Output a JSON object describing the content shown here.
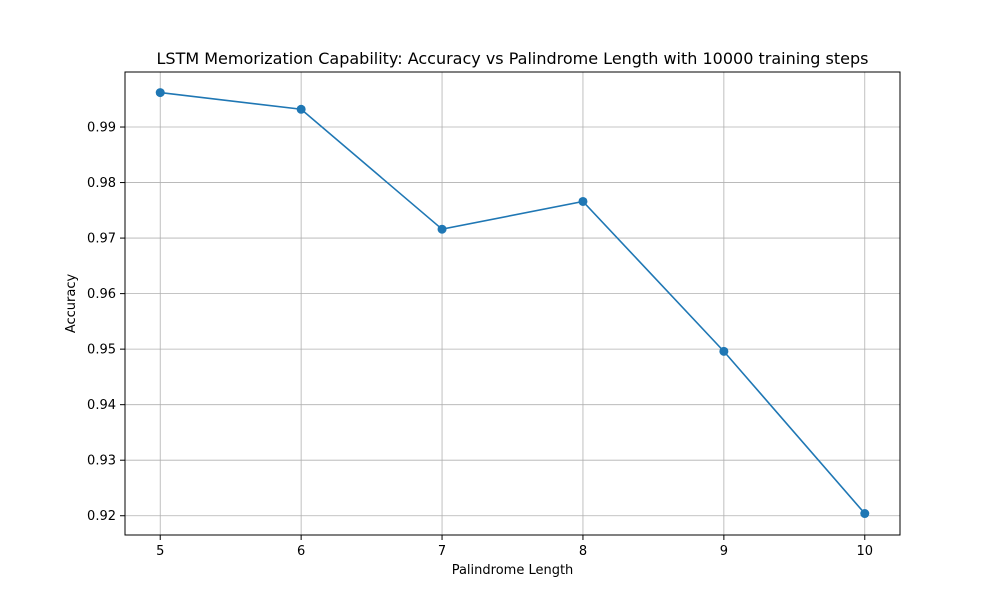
{
  "chart_data": {
    "type": "line",
    "title": "LSTM Memorization Capability: Accuracy vs Palindrome Length with 10000 training steps",
    "xlabel": "Palindrome Length",
    "ylabel": "Accuracy",
    "x": [
      5,
      6,
      7,
      8,
      9,
      10
    ],
    "series": [
      {
        "values": [
          0.9962,
          0.9932,
          0.9716,
          0.9766,
          0.9496,
          0.9204
        ]
      }
    ],
    "xticks": [
      5,
      6,
      7,
      8,
      9,
      10
    ],
    "yticks": [
      0.92,
      0.93,
      0.94,
      0.95,
      0.96,
      0.97,
      0.98,
      0.99
    ],
    "xtick_labels": [
      "5",
      "6",
      "7",
      "8",
      "9",
      "10"
    ],
    "ytick_labels": [
      "0.92",
      "0.93",
      "0.94",
      "0.95",
      "0.96",
      "0.97",
      "0.98",
      "0.99"
    ],
    "xlim": [
      4.75,
      10.25
    ],
    "ylim": [
      0.91653,
      0.99991
    ],
    "grid": true,
    "marker": "circle",
    "line_color": "#1f77b4"
  }
}
